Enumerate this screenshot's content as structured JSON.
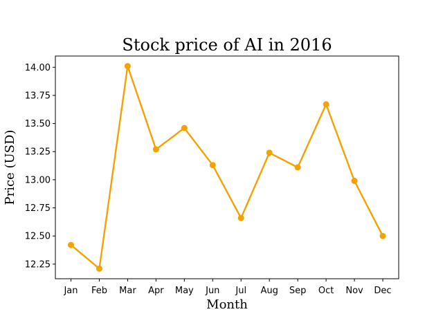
{
  "chart_data": {
    "type": "line",
    "title": "Stock price of AI in 2016",
    "xlabel": "Month",
    "ylabel": "Price (USD)",
    "categories": [
      "Jan",
      "Feb",
      "Mar",
      "Apr",
      "May",
      "Jun",
      "Jul",
      "Aug",
      "Sep",
      "Oct",
      "Nov",
      "Dec"
    ],
    "values": [
      12.42,
      12.21,
      14.01,
      13.27,
      13.46,
      13.13,
      12.66,
      13.24,
      13.11,
      13.67,
      12.99,
      12.5
    ],
    "ylim": [
      12.12,
      14.1
    ],
    "yticks": [
      "12.25",
      "12.50",
      "12.75",
      "13.00",
      "13.25",
      "13.50",
      "13.75",
      "14.00"
    ],
    "grid": false,
    "color": "#f5a100",
    "marker": "circle"
  }
}
